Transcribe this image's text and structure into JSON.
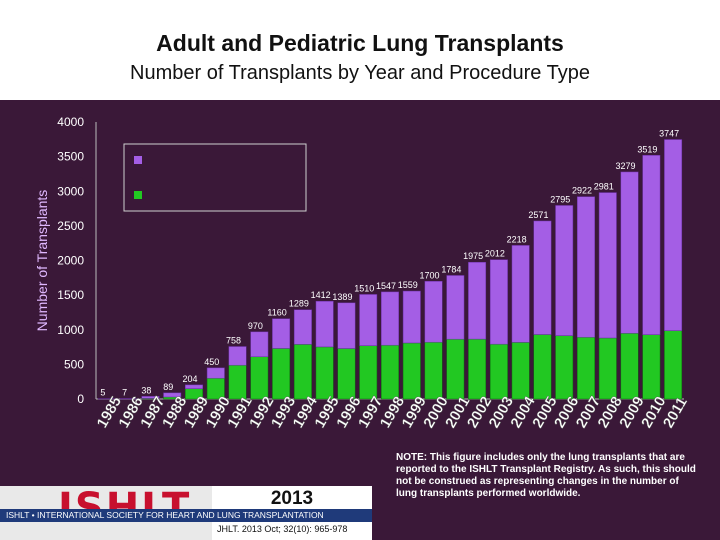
{
  "header": {
    "title": "Adult and Pediatric Lung Transplants",
    "subtitle": "Number of Transplants by Year and Procedure Type"
  },
  "colors": {
    "background": "#3a1838",
    "purple_series": "#a45ee5",
    "green_series": "#22c822"
  },
  "chart_data": {
    "type": "bar",
    "stacked": true,
    "ylabel": "Number of Transplants",
    "ylim": [
      0,
      4000
    ],
    "yticks": [
      0,
      500,
      1000,
      1500,
      2000,
      2500,
      3000,
      3500,
      4000
    ],
    "categories": [
      "1985",
      "1986",
      "1987",
      "1988",
      "1989",
      "1990",
      "1991",
      "1992",
      "1993",
      "1994",
      "1995",
      "1996",
      "1997",
      "1998",
      "1999",
      "2000",
      "2001",
      "2002",
      "2003",
      "2004",
      "2005",
      "2006",
      "2007",
      "2008",
      "2009",
      "2010",
      "2011"
    ],
    "totals": [
      5,
      7,
      38,
      89,
      204,
      450,
      758,
      970,
      1160,
      1289,
      1412,
      1389,
      1510,
      1547,
      1559,
      1700,
      1784,
      1975,
      2012,
      2218,
      2571,
      2795,
      2922,
      2981,
      3279,
      3519,
      3747
    ],
    "series": [
      {
        "values": [
          5,
          7,
          30,
          60,
          55,
          150,
          270,
          360,
          430,
          500,
          660,
          660,
          740,
          770,
          750,
          880,
          920,
          1110,
          1220,
          1400,
          1640,
          1880,
          2030,
          2100,
          2330,
          2590,
          2760
        ]
      },
      {
        "values": [
          0,
          0,
          8,
          29,
          149,
          300,
          488,
          610,
          730,
          789,
          752,
          729,
          770,
          777,
          809,
          820,
          864,
          865,
          792,
          818,
          931,
          915,
          892,
          881,
          949,
          929,
          987
        ]
      }
    ],
    "legend": {
      "position": "top-left",
      "labels": [
        "",
        ""
      ]
    },
    "grid": false
  },
  "footer": {
    "logo": "ISHLT",
    "society": "ISHLT • INTERNATIONAL SOCIETY FOR HEART AND LUNG TRANSPLANTATION",
    "year": "2013",
    "citation": "JHLT. 2013 Oct; 32(10): 965-978",
    "note": "NOTE: This figure includes only the lung transplants that are reported to the ISHLT Transplant Registry. As such, this should not be construed as representing changes in the number of lung transplants performed worldwide."
  }
}
